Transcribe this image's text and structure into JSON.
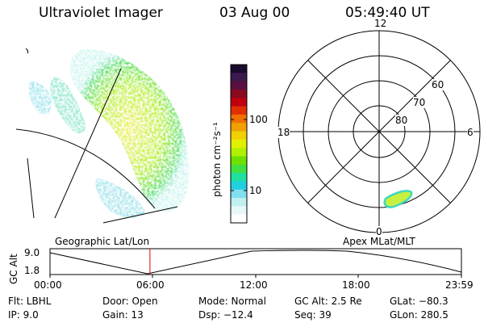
{
  "header": {
    "instrument": "Ultraviolet Imager",
    "date": "03 Aug 00",
    "time": "05:49:40 UT"
  },
  "colorbar": {
    "label": "photon cm⁻²s⁻¹",
    "ticks": [
      "100",
      "10"
    ],
    "colors": [
      "#1a0a2e",
      "#3a1a4e",
      "#5a1040",
      "#8a0a20",
      "#c00010",
      "#e03000",
      "#f07000",
      "#f0a000",
      "#f0d000",
      "#e0f000",
      "#b0f000",
      "#70e000",
      "#40e040",
      "#20e0a0",
      "#20d0e0",
      "#80e0f0",
      "#c0f0f0",
      "#e8f8f8",
      "#ffffff"
    ]
  },
  "polar_plot": {
    "mlt_labels": {
      "top": "12",
      "left": "18",
      "right": "6",
      "bottom": "0"
    },
    "lat_labels": [
      "60",
      "70",
      "80"
    ]
  },
  "timeline": {
    "ylabel": "GC Alt",
    "y_ticks": [
      "9.0",
      "1.8"
    ],
    "left_caption": "Geographic Lat/Lon",
    "right_caption": "Apex MLat/MLT",
    "x_ticks": [
      "00:00",
      "06:00",
      "12:00",
      "18:00",
      "23:59"
    ],
    "marker_time_hours": 5.83
  },
  "info": {
    "filter": "Flt: LBHL",
    "ip": "IP:  9.0",
    "door": "Door: Open",
    "gain": "Gain: 13",
    "mode": "Mode: Normal",
    "dsp": "Dsp:  −12.4",
    "gc_alt": "GC Alt: 2.5 Re",
    "seq": "Seq: 39",
    "glat": "GLat: −80.3",
    "glon": "GLon: 280.5"
  },
  "theme": {
    "marker_color": "#e00000",
    "auroral_green": "#b8f040",
    "auroral_yellow": "#f0f060"
  }
}
